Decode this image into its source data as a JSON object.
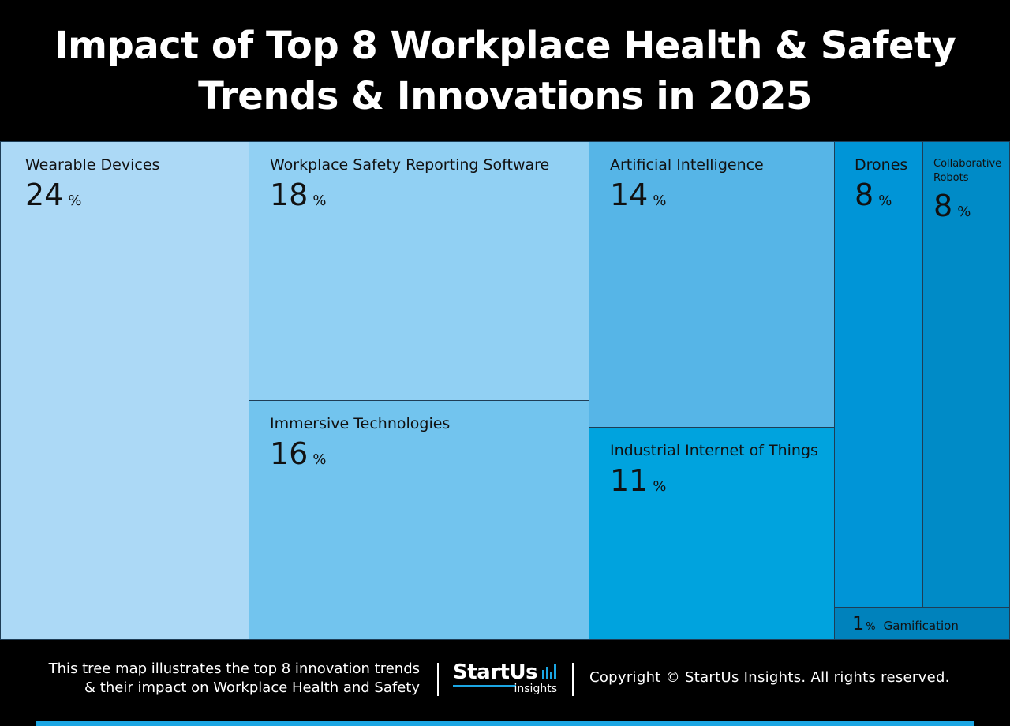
{
  "header": {
    "title_line1": "Impact of Top 8 Workplace Health & Safety",
    "title_line2": "Trends & Innovations in 2025"
  },
  "chart_data": {
    "type": "treemap",
    "title": "Impact of Top 8 Workplace Health & Safety Trends & Innovations in 2025",
    "unit": "%",
    "items": [
      {
        "label": "Wearable Devices",
        "value": 24,
        "color": "#acd9f6"
      },
      {
        "label": "Workplace Safety Reporting Software",
        "value": 18,
        "color": "#91d0f3"
      },
      {
        "label": "Immersive Technologies",
        "value": 16,
        "color": "#72c4ee"
      },
      {
        "label": "Artificial Intelligence",
        "value": 14,
        "color": "#56b5e7"
      },
      {
        "label": "Industrial Internet of Things",
        "value": 11,
        "color": "#00a3de"
      },
      {
        "label": "Drones",
        "value": 8,
        "color": "#0095d7"
      },
      {
        "label": "Collaborative Robots",
        "value": 8,
        "color": "#008bc7"
      },
      {
        "label": "Gamification",
        "value": 1,
        "color": "#0082bc"
      }
    ]
  },
  "footer": {
    "description_line1": "This tree map illustrates the top 8 innovation trends",
    "description_line2": "& their impact on Workplace Health and Safety",
    "logo_name": "StartUs",
    "logo_sub": "insights",
    "copyright": "Copyright © StartUs Insights. All rights reserved.",
    "accent_color": "#1ba6e3"
  }
}
